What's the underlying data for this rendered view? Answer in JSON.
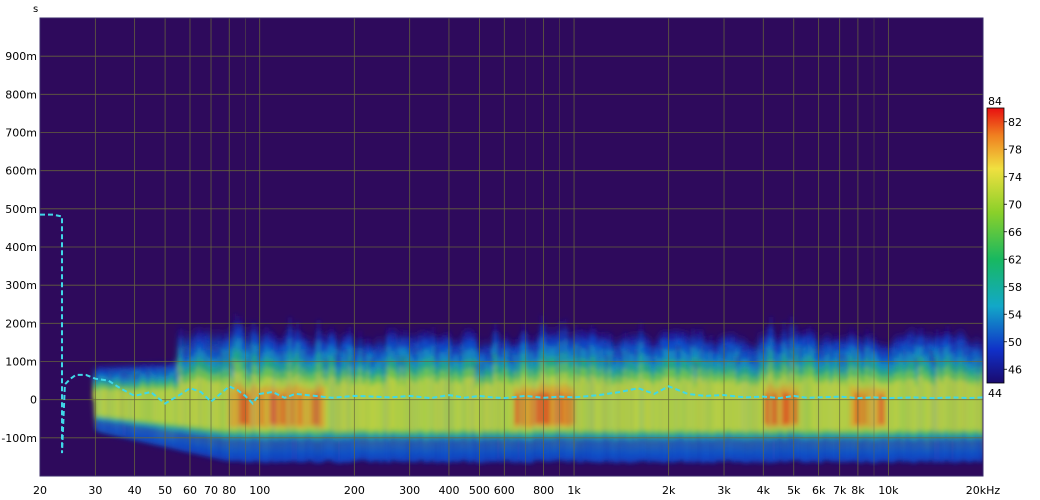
{
  "chart_data": {
    "type": "heatmap",
    "title": "",
    "xlabel": "",
    "ylabel": "",
    "y_unit_label": "s",
    "x_scale": "log",
    "xlim": [
      20,
      20000
    ],
    "ylim": [
      -0.2,
      1.0
    ],
    "x_ticks": [
      {
        "v": 20,
        "label": "20"
      },
      {
        "v": 30,
        "label": "30"
      },
      {
        "v": 40,
        "label": "40"
      },
      {
        "v": 50,
        "label": "50"
      },
      {
        "v": 60,
        "label": "60"
      },
      {
        "v": 70,
        "label": "70"
      },
      {
        "v": 80,
        "label": "80"
      },
      {
        "v": 100,
        "label": "100"
      },
      {
        "v": 200,
        "label": "200"
      },
      {
        "v": 300,
        "label": "300"
      },
      {
        "v": 400,
        "label": "400"
      },
      {
        "v": 500,
        "label": "500"
      },
      {
        "v": 600,
        "label": "600"
      },
      {
        "v": 800,
        "label": "800"
      },
      {
        "v": 1000,
        "label": "1k"
      },
      {
        "v": 2000,
        "label": "2k"
      },
      {
        "v": 3000,
        "label": "3k"
      },
      {
        "v": 4000,
        "label": "4k"
      },
      {
        "v": 5000,
        "label": "5k"
      },
      {
        "v": 6000,
        "label": "6k"
      },
      {
        "v": 7000,
        "label": "7k"
      },
      {
        "v": 8000,
        "label": "8k"
      },
      {
        "v": 10000,
        "label": "10k"
      },
      {
        "v": 20000,
        "label": "20kHz"
      }
    ],
    "y_ticks": [
      {
        "v": 0.9,
        "label": "900m"
      },
      {
        "v": 0.8,
        "label": "800m"
      },
      {
        "v": 0.7,
        "label": "700m"
      },
      {
        "v": 0.6,
        "label": "600m"
      },
      {
        "v": 0.5,
        "label": "500m"
      },
      {
        "v": 0.4,
        "label": "400m"
      },
      {
        "v": 0.3,
        "label": "300m"
      },
      {
        "v": 0.2,
        "label": "200m"
      },
      {
        "v": 0.1,
        "label": "100m"
      },
      {
        "v": 0.0,
        "label": "0"
      },
      {
        "v": -0.1,
        "label": "-100m"
      }
    ],
    "colorbar": {
      "min": 44,
      "max": 84,
      "ticks": [
        "84",
        "82",
        "78",
        "74",
        "70",
        "66",
        "62",
        "58",
        "54",
        "50",
        "46",
        "44"
      ]
    },
    "grid": true,
    "colors": {
      "background": "#2e0a5c",
      "grid": "#6a6a3a",
      "peak_line": "#3fd8e8"
    },
    "series": [
      {
        "kind": "peak_delay_line",
        "x": [
          20,
          22,
          23.5,
          23.5,
          24,
          25,
          26,
          28,
          30,
          33,
          36,
          40,
          45,
          50,
          55,
          60,
          65,
          70,
          75,
          80,
          85,
          90,
          95,
          100,
          110,
          120,
          130,
          150,
          170,
          200,
          230,
          260,
          300,
          350,
          400,
          450,
          500,
          550,
          600,
          700,
          800,
          900,
          1000,
          1200,
          1400,
          1600,
          1800,
          2000,
          2300,
          2600,
          3000,
          3500,
          4000,
          4500,
          5000,
          5500,
          6000,
          7000,
          8000,
          9000,
          10000,
          12000,
          14000,
          16000,
          18000,
          20000
        ],
        "y": [
          0.485,
          0.485,
          0.48,
          -0.14,
          0.04,
          0.055,
          0.065,
          0.065,
          0.055,
          0.05,
          0.03,
          0.01,
          0.02,
          -0.01,
          0.01,
          0.03,
          0.02,
          -0.005,
          0.015,
          0.035,
          0.025,
          0.01,
          -0.01,
          0.015,
          0.02,
          0.005,
          0.015,
          0.01,
          0.005,
          0.01,
          0.008,
          0.006,
          0.01,
          0.004,
          0.012,
          0.005,
          0.01,
          0.006,
          0.004,
          0.01,
          0.005,
          0.008,
          0.006,
          0.012,
          0.02,
          0.03,
          0.015,
          0.035,
          0.015,
          0.01,
          0.012,
          0.006,
          0.008,
          0.004,
          0.01,
          0.005,
          0.006,
          0.008,
          0.004,
          0.006,
          0.004,
          0.006,
          0.004,
          0.006,
          0.004,
          0.006
        ]
      }
    ]
  }
}
